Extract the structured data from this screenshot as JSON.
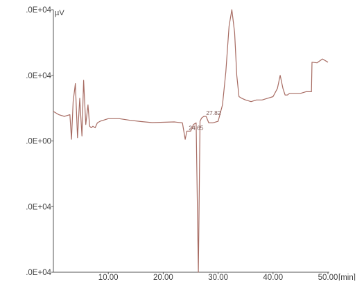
{
  "chart_data": {
    "type": "line",
    "title": "",
    "xlabel": "",
    "ylabel": "",
    "y_unit": "µV",
    "x_unit": "[min]",
    "xlim": [
      0,
      50
    ],
    "ylim": [
      -40000,
      40000
    ],
    "grid": false,
    "legend": "none",
    "line_color": "#a76b62",
    "axis_color": "#555555",
    "x_ticks": [
      10,
      20,
      30,
      40,
      50
    ],
    "x_tick_labels": [
      "10.00",
      "20.00",
      "30.00",
      "40.00",
      "50.00"
    ],
    "y_ticks": [
      40000,
      20000,
      0,
      -20000,
      -40000
    ],
    "y_tick_labels": [
      ".0E+04",
      ".0E+04",
      ".0E+00",
      ".0E+04",
      ".0E+04"
    ],
    "annotations": [
      {
        "x": 24.65,
        "y": 3000,
        "text": "24.65"
      },
      {
        "x": 27.82,
        "y": 7500,
        "text": "27.82"
      }
    ],
    "series": [
      {
        "x": [
          0,
          1,
          2,
          3,
          3.3,
          3.6,
          4.0,
          4.4,
          4.8,
          5.2,
          5.5,
          5.9,
          6.3,
          6.6,
          6.9,
          7.2,
          7.6,
          8.0,
          8.5,
          10,
          12,
          14,
          16,
          18,
          20,
          22,
          23.5,
          24.0,
          24.3,
          24.65,
          25.0,
          25.5,
          26.0,
          26.4,
          26.7,
          27.0,
          27.4,
          27.82,
          28.3,
          29,
          30,
          30.8,
          31.4,
          32.0,
          32.5,
          33.0,
          33.4,
          33.8,
          34.3,
          35,
          36,
          37,
          38,
          39,
          40,
          40.8,
          41.3,
          41.8,
          42.2,
          42.6,
          43,
          44,
          45,
          46,
          47,
          47.1,
          48,
          49,
          50
        ],
        "y": [
          9000,
          8000,
          7500,
          8000,
          500,
          12000,
          17500,
          1000,
          13000,
          1500,
          18500,
          5000,
          11000,
          4500,
          4000,
          4500,
          4000,
          5500,
          6000,
          6800,
          6800,
          6300,
          5900,
          5600,
          5700,
          5800,
          5500,
          500,
          3000,
          3000,
          3000,
          5000,
          5500,
          -40000,
          6000,
          7000,
          7500,
          7500,
          5500,
          5500,
          6000,
          11000,
          21000,
          35000,
          40000,
          33000,
          20000,
          13500,
          13000,
          12500,
          12000,
          12500,
          12500,
          13000,
          13500,
          16000,
          20000,
          16000,
          14000,
          14000,
          14500,
          14500,
          14500,
          15000,
          15000,
          24000,
          23800,
          25000,
          24000
        ]
      }
    ]
  }
}
